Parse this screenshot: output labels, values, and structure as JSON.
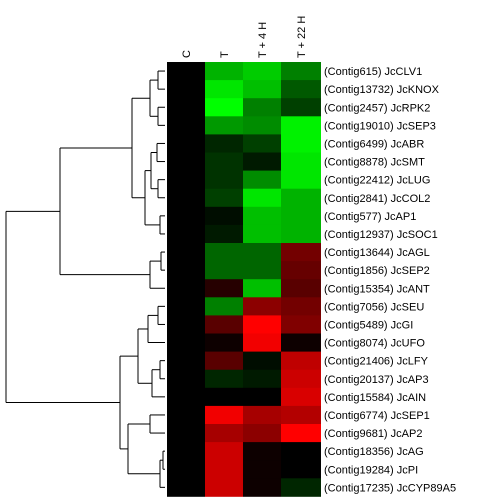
{
  "chart_data": {
    "type": "heatmap",
    "columns": [
      "C",
      "T",
      "T + 4 H",
      "T + 22 H"
    ],
    "rows": [
      "(Contig615) JcCLV1",
      "(Contig13732) JcKNOX",
      "(Contig2457) JcRPK2",
      "(Contig19010) JcSEP3",
      "(Contig6499) JcABR",
      "(Contig8878) JcSMT",
      "(Contig22412) JcLUG",
      "(Contig2841) JcCOL2",
      "(Contig577) JcAP1",
      "(Contig12937) JcSOC1",
      "(Contig13644) JcAGL",
      "(Contig1856) JcSEP2",
      "(Contig15354) JcANT",
      "(Contig7056) JcSEU",
      "(Contig5489) JcGI",
      "(Contig8074) JcUFO",
      "(Contig21406) JcLFY",
      "(Contig20137) JcAP3",
      "(Contig15584) JcAIN",
      "(Contig6774) JcSEP1",
      "(Contig9681) JcAP2",
      "(Contig18356) JcAG",
      "(Contig19284) JcPI",
      "(Contig17235) JcCYP89A5"
    ],
    "values": [
      [
        0,
        -0.7,
        -0.8,
        -0.5
      ],
      [
        0,
        -0.9,
        -0.75,
        -0.35
      ],
      [
        0,
        -1.0,
        -0.5,
        -0.25
      ],
      [
        0,
        -0.6,
        -0.55,
        -0.95
      ],
      [
        0,
        -0.15,
        -0.25,
        -0.95
      ],
      [
        0,
        -0.2,
        -0.1,
        -0.9
      ],
      [
        0,
        -0.2,
        -0.55,
        -0.9
      ],
      [
        0,
        -0.25,
        -0.9,
        -0.7
      ],
      [
        0,
        -0.05,
        -0.75,
        -0.7
      ],
      [
        0,
        -0.1,
        -0.75,
        -0.7
      ],
      [
        0,
        -0.4,
        -0.4,
        0.45
      ],
      [
        0,
        -0.4,
        -0.4,
        0.4
      ],
      [
        0,
        0.15,
        -0.75,
        0.35
      ],
      [
        0,
        -0.5,
        0.55,
        0.45
      ],
      [
        0,
        0.35,
        1.0,
        0.5
      ],
      [
        0,
        0.05,
        0.95,
        0.05
      ],
      [
        0,
        0.35,
        -0.05,
        0.75
      ],
      [
        0,
        -0.15,
        -0.1,
        0.8
      ],
      [
        0,
        0.0,
        0.0,
        0.85
      ],
      [
        0,
        0.95,
        0.65,
        0.7
      ],
      [
        0,
        0.65,
        0.55,
        1.0
      ],
      [
        0,
        0.8,
        0.05,
        0.0
      ],
      [
        0,
        0.8,
        0.05,
        0.0
      ],
      [
        0,
        0.8,
        0.05,
        -0.15
      ]
    ],
    "color_scale": {
      "negative": "#00ff00",
      "zero": "#000000",
      "positive": "#ff0000"
    },
    "dendrogram": "row clustering tree on left"
  }
}
